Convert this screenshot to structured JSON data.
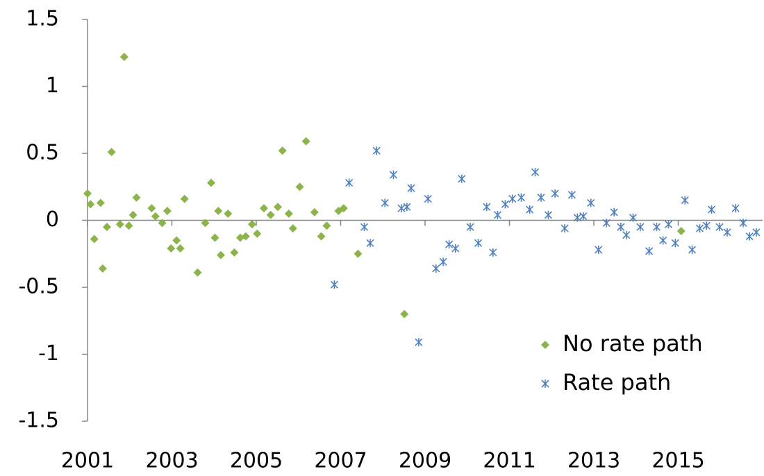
{
  "chart_data": {
    "type": "scatter",
    "xlim": [
      2001,
      2017
    ],
    "xticks": [
      2001,
      2003,
      2005,
      2007,
      2009,
      2011,
      2013,
      2015
    ],
    "ylim": [
      -1.5,
      1.5
    ],
    "yticks": [
      -1.5,
      -1,
      -0.5,
      0,
      0.5,
      1,
      1.5
    ],
    "legend": "lower right",
    "series": [
      {
        "name": "No rate path",
        "color": "#8db44a",
        "marker": "diamond",
        "x": [
          2001.0,
          2001.07,
          2001.31,
          2001.16,
          2001.36,
          2001.46,
          2001.57,
          2001.77,
          2001.87,
          2001.98,
          2002.08,
          2002.16,
          2002.52,
          2002.61,
          2002.77,
          2002.89,
          2002.98,
          2003.11,
          2003.2,
          2003.3,
          2003.61,
          2003.79,
          2003.93,
          2004.02,
          2004.1,
          2004.16,
          2004.33,
          2004.48,
          2004.62,
          2004.75,
          2004.9,
          2005.02,
          2005.18,
          2005.34,
          2005.51,
          2005.62,
          2005.77,
          2005.87,
          2006.03,
          2006.18,
          2006.38,
          2006.54,
          2006.67,
          2006.95,
          2007.07,
          2007.41,
          2008.51,
          2015.07
        ],
        "values": [
          0.2,
          0.12,
          0.13,
          -0.14,
          -0.36,
          -0.05,
          0.51,
          -0.03,
          1.22,
          -0.04,
          0.04,
          0.17,
          0.09,
          0.03,
          -0.02,
          0.07,
          -0.21,
          -0.15,
          -0.21,
          0.16,
          -0.39,
          -0.02,
          0.28,
          -0.13,
          0.07,
          -0.26,
          0.05,
          -0.24,
          -0.13,
          -0.12,
          -0.03,
          -0.1,
          0.09,
          0.04,
          0.1,
          0.52,
          0.05,
          -0.06,
          0.25,
          0.59,
          0.06,
          -0.12,
          -0.04,
          0.07,
          0.09,
          -0.25,
          -0.7,
          -0.08
        ]
      },
      {
        "name": "Rate path",
        "color": "#4f81bd",
        "marker": "asterisk",
        "x": [
          2006.85,
          2007.2,
          2007.56,
          2007.7,
          2007.85,
          2008.05,
          2008.25,
          2008.44,
          2008.57,
          2008.67,
          2008.85,
          2009.07,
          2009.26,
          2009.43,
          2009.57,
          2009.72,
          2009.87,
          2010.07,
          2010.26,
          2010.46,
          2010.61,
          2010.72,
          2010.9,
          2011.07,
          2011.28,
          2011.48,
          2011.61,
          2011.75,
          2011.92,
          2012.08,
          2012.31,
          2012.48,
          2012.61,
          2012.75,
          2012.93,
          2013.11,
          2013.3,
          2013.48,
          2013.64,
          2013.77,
          2013.93,
          2014.1,
          2014.31,
          2014.49,
          2014.64,
          2014.77,
          2014.93,
          2015.16,
          2015.33,
          2015.51,
          2015.67,
          2015.79,
          2015.98,
          2016.16,
          2016.36,
          2016.54,
          2016.69,
          2016.85
        ],
        "values": [
          -0.48,
          0.28,
          -0.05,
          -0.17,
          0.52,
          0.13,
          0.34,
          0.09,
          0.1,
          0.24,
          -0.91,
          0.16,
          -0.36,
          -0.31,
          -0.18,
          -0.21,
          0.31,
          -0.05,
          -0.17,
          0.1,
          -0.24,
          0.04,
          0.12,
          0.16,
          0.17,
          0.08,
          0.36,
          0.17,
          0.04,
          0.2,
          -0.06,
          0.19,
          0.02,
          0.03,
          0.13,
          -0.22,
          -0.02,
          0.06,
          -0.05,
          -0.11,
          0.02,
          -0.05,
          -0.23,
          -0.05,
          -0.15,
          -0.03,
          -0.17,
          0.15,
          -0.22,
          -0.06,
          -0.04,
          0.08,
          -0.05,
          -0.09,
          0.09,
          -0.02,
          -0.12,
          -0.09
        ]
      }
    ]
  }
}
